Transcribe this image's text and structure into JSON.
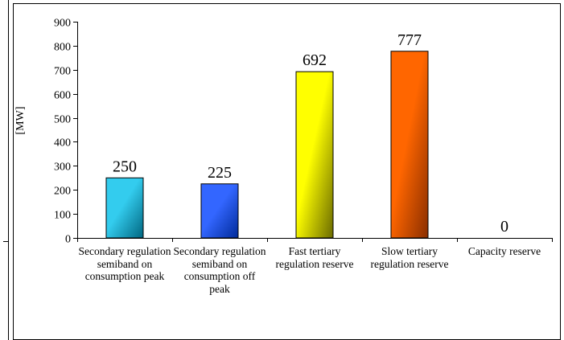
{
  "chart_data": {
    "type": "bar",
    "title": "",
    "xlabel": "",
    "ylabel": "[MW]",
    "ylim": [
      0,
      900
    ],
    "yticks": [
      0,
      100,
      200,
      300,
      400,
      500,
      600,
      700,
      800,
      900
    ],
    "categories": [
      "Secondary regulation semiband on consumption peak",
      "Secondary regulation semiband on consumption off peak",
      "Fast tertiary regulation reserve",
      "Slow tertiary regulation reserve",
      "Capacity reserve"
    ],
    "values": [
      250,
      225,
      692,
      777,
      0
    ],
    "data_labels": [
      "250",
      "225",
      "692",
      "777",
      "0"
    ],
    "bar_colors": [
      "#33ccee",
      "#3366ff",
      "#ffff00",
      "#ff6600",
      "#999999"
    ],
    "bar_shadow_colors": [
      "#006680",
      "#002a99",
      "#6b6b00",
      "#8a2e00",
      "#444444"
    ],
    "grid": false,
    "legend": "none"
  }
}
